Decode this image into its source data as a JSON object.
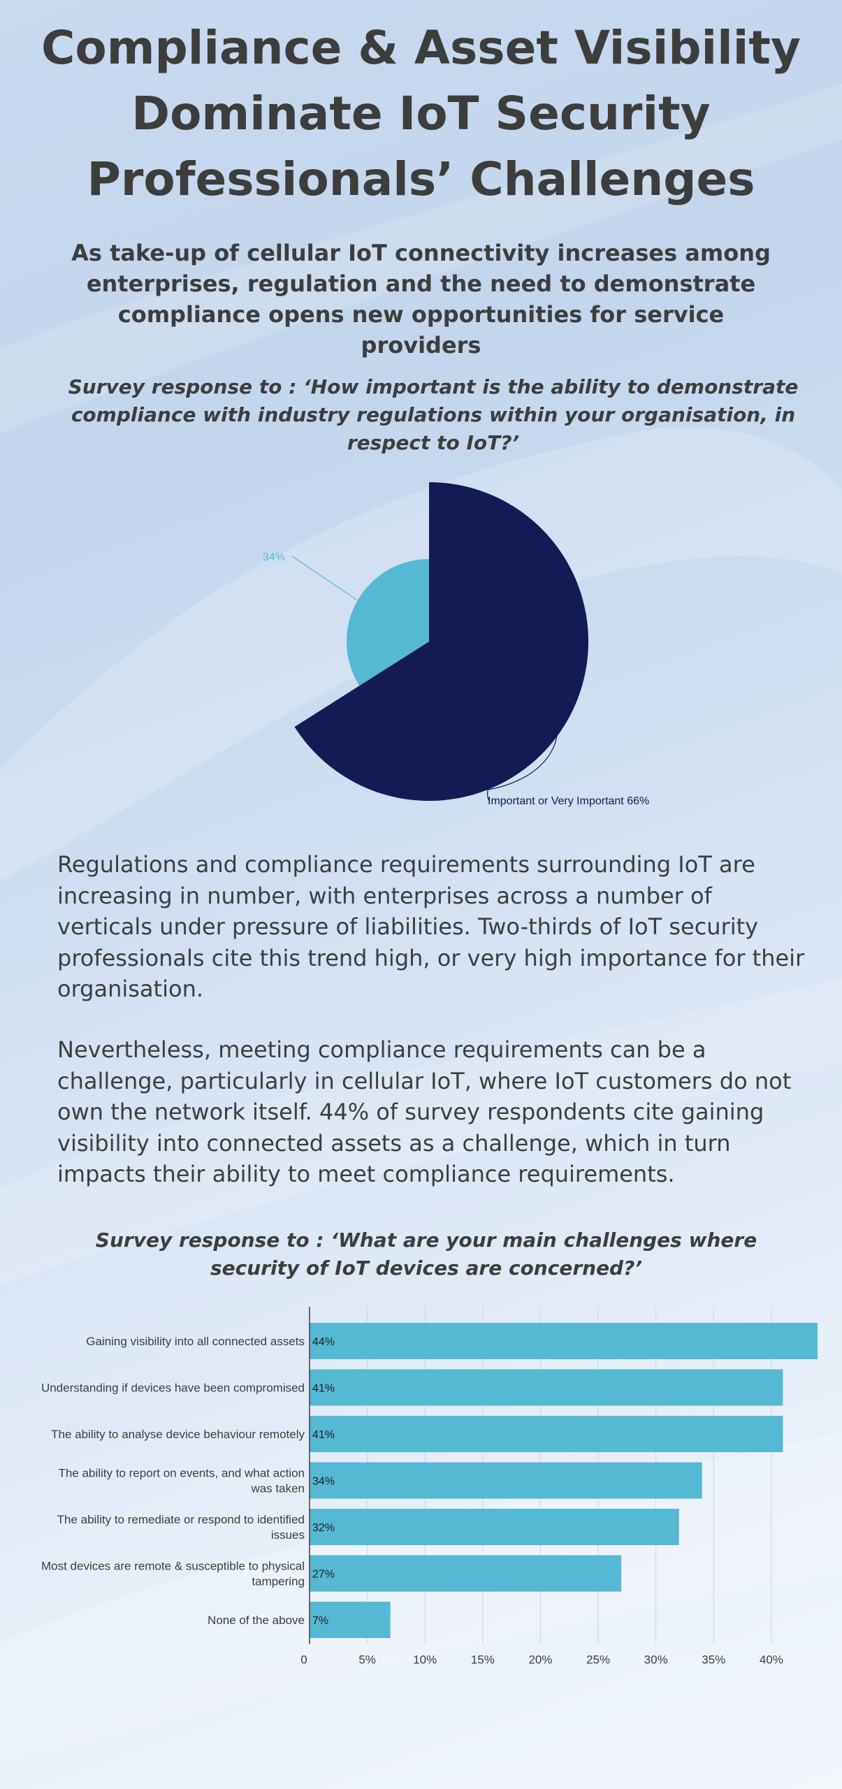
{
  "title": "Compliance & Asset Visibility Dominate IoT Security Professionals’ Challenges",
  "subtitle": "As take-up of cellular IoT connectivity increases among enterprises, regulation and the need to demonstrate compliance opens new opportunities for service providers",
  "question1": "Survey response to : ‘How important is the ability to demonstrate compliance with industry regulations within your organisation, in respect to IoT?’",
  "paragraph1": "Regulations and compliance requirements surrounding IoT are increasing in number, with enterprises across a number of verticals under pressure of liabilities. Two-thirds of IoT security professionals cite this trend high, or very high importance for their organisation.",
  "paragraph2": "Nevertheless, meeting compliance requirements can be a challenge, particularly in cellular IoT, where IoT customers do not own the network itself. 44% of survey respondents cite gaining visibility into connected assets as a challenge, which in turn impacts their ability to meet compliance requirements.",
  "question2": "Survey response to : ‘What are your main challenges where security of IoT devices are concerned?’",
  "colors": {
    "pie_large": "#141a55",
    "pie_small": "#55b8d4",
    "bar": "#55b8d4",
    "text": "#3d3d3d"
  },
  "chart_data": [
    {
      "type": "pie",
      "slices": [
        {
          "label": "Important or Very Important 66%",
          "value": 66,
          "color": "#141a55"
        },
        {
          "label": "34%",
          "value": 34,
          "color": "#55b8d4"
        }
      ]
    },
    {
      "type": "bar",
      "orientation": "horizontal",
      "categories": [
        "Gaining visibility into all connected assets",
        "Understanding if devices have been compromised",
        "The ability to analyse device behaviour remotely",
        "The ability to report on events, and what action was taken",
        "The ability to remediate or respond to identified issues",
        "Most devices are remote & susceptible to physical tampering",
        "None of the above"
      ],
      "category_lines": [
        [
          "Gaining visibility into all connected assets"
        ],
        [
          "Understanding if devices have been compromised"
        ],
        [
          "The ability to analyse device behaviour remotely"
        ],
        [
          "The ability to report on events, and what action",
          "was taken"
        ],
        [
          "The ability to remediate or respond to identified",
          "issues"
        ],
        [
          "Most devices are remote & susceptible to physical",
          "tampering"
        ],
        [
          "None of the above"
        ]
      ],
      "values": [
        44,
        41,
        41,
        34,
        32,
        27,
        7
      ],
      "data_labels": [
        "44%",
        "41%",
        "41%",
        "34%",
        "32%",
        "27%",
        "7%"
      ],
      "xlim": [
        0,
        44
      ],
      "xticks": [
        0,
        5,
        10,
        15,
        20,
        25,
        30,
        35,
        40
      ],
      "xtick_labels": [
        "0",
        "5%",
        "10%",
        "15%",
        "20%",
        "25%",
        "30%",
        "35%",
        "40%"
      ],
      "grid": true
    }
  ]
}
